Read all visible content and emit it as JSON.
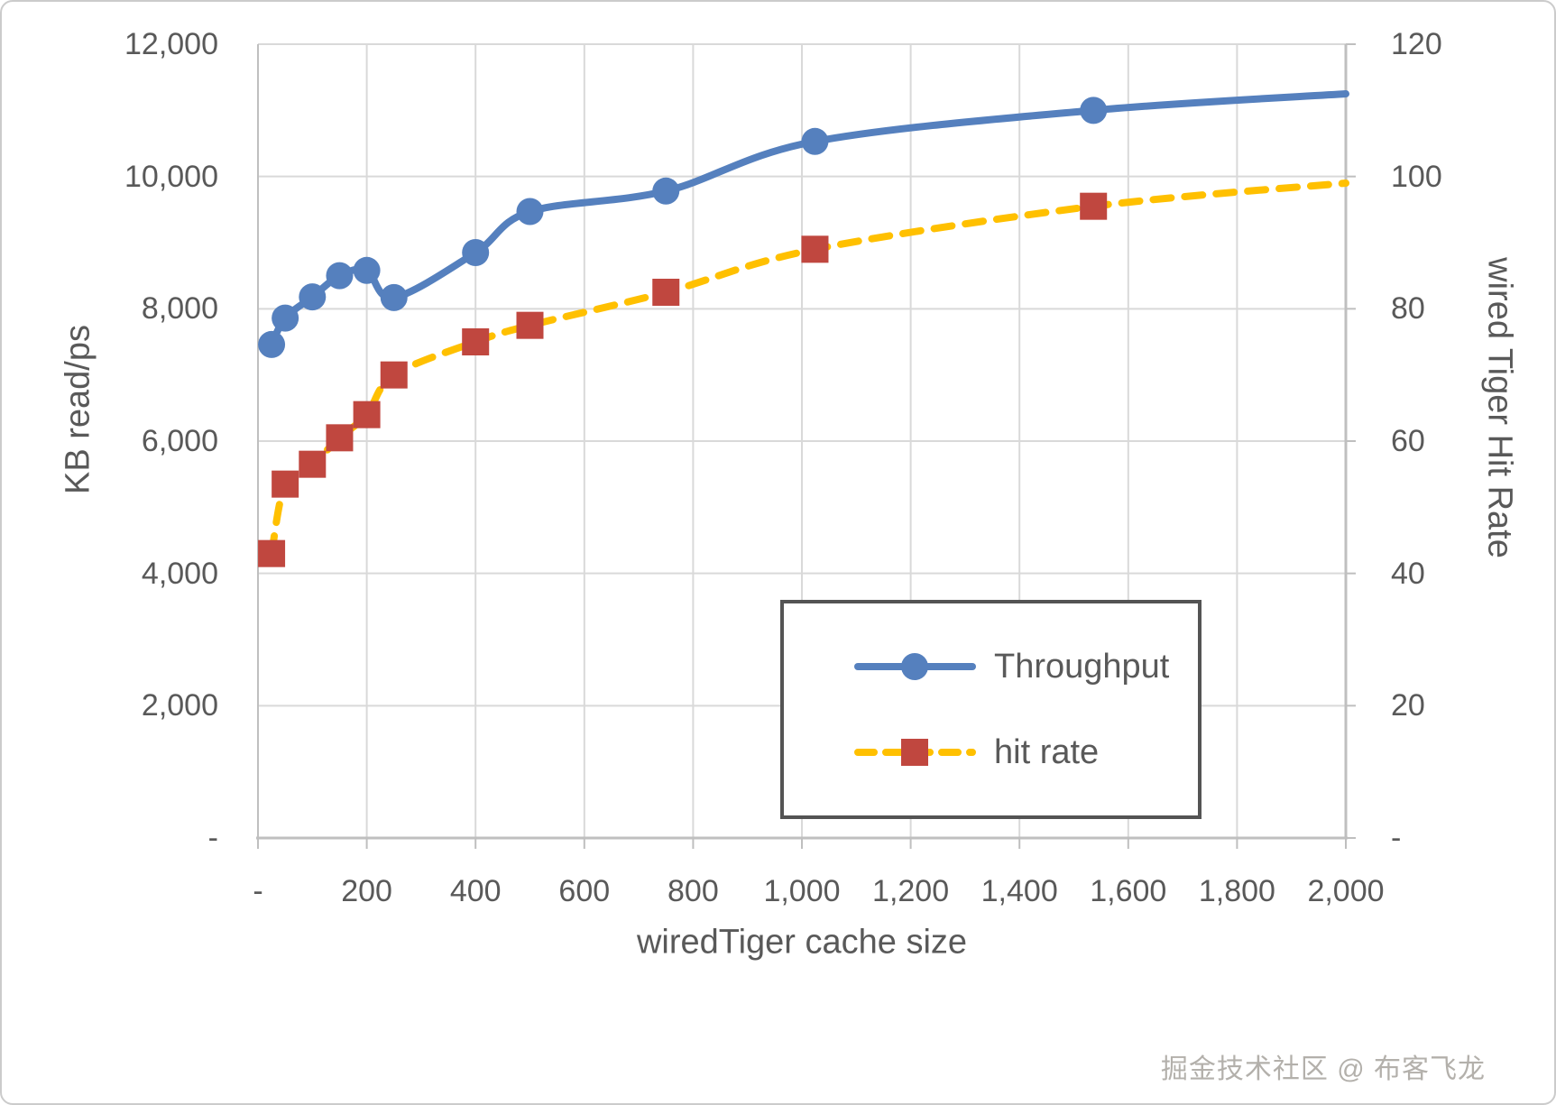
{
  "chart_data": {
    "type": "line",
    "title": "",
    "xlabel": "wiredTiger cache size",
    "ylabel_left": "KB read/ps",
    "ylabel_right": "wired Tiger Hit Rate",
    "grid": true,
    "legend_position": "inside-bottom-right",
    "x_range": [
      0,
      2000
    ],
    "y_left_range": [
      0,
      12000
    ],
    "y_right_range": [
      0,
      120
    ],
    "x_tick_values": [
      0,
      200,
      400,
      600,
      800,
      1000,
      1200,
      1400,
      1600,
      1800,
      2000
    ],
    "x_tick_labels": [
      "-",
      "200",
      "400",
      "600",
      "800",
      "1,000",
      "1,200",
      "1,400",
      "1,600",
      "1,800",
      "2,000"
    ],
    "y_left_tick_values": [
      0,
      2000,
      4000,
      6000,
      8000,
      10000,
      12000
    ],
    "y_left_tick_labels": [
      "-",
      "2,000",
      "4,000",
      "6,000",
      "8,000",
      "10,000",
      "12,000"
    ],
    "y_right_tick_values": [
      0,
      20,
      40,
      60,
      80,
      100,
      120
    ],
    "y_right_tick_labels": [
      "-",
      "20",
      "40",
      "60",
      "80",
      "100",
      "120"
    ],
    "series": [
      {
        "name": "Throughput",
        "axis": "left",
        "smooth": true,
        "dashed": false,
        "color": "#5580BE",
        "marker": "circle",
        "marker_color": "#5580BE",
        "marker_on_last": false,
        "x": [
          25,
          50,
          100,
          150,
          200,
          250,
          400,
          500,
          750,
          1024,
          1536,
          2000
        ],
        "y": [
          7460,
          7860,
          8180,
          8500,
          8580,
          8170,
          8850,
          9470,
          9780,
          10530,
          11000,
          11250
        ]
      },
      {
        "name": "hit rate",
        "axis": "right",
        "smooth": true,
        "dashed": true,
        "color": "#FFC000",
        "marker": "square",
        "marker_color": "#C0473F",
        "marker_on_last": false,
        "x": [
          25,
          50,
          100,
          150,
          200,
          250,
          400,
          500,
          750,
          1024,
          1536,
          2000
        ],
        "y": [
          43,
          53.5,
          56.5,
          60.5,
          64,
          70,
          75,
          77.5,
          82.5,
          89,
          95.5,
          99
        ]
      }
    ]
  },
  "watermark": {
    "text": "掘金技术社区 @ 布客飞龙"
  }
}
